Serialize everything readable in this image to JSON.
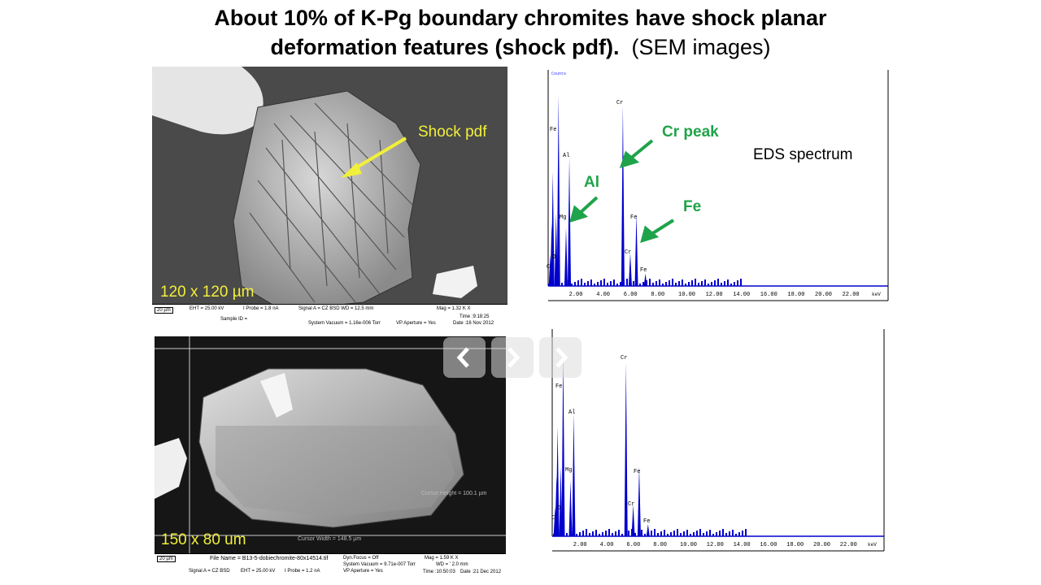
{
  "title": {
    "line1": "About 10% of K-Pg boundary chromites have shock planar",
    "line2_bold": "deformation features (shock pdf).",
    "line2_normal": "(SEM images)"
  },
  "sem_top": {
    "size_label": "120 x 120 µm",
    "annotation": "Shock pdf",
    "info": {
      "eht": "EHT = 25.00 kV",
      "iprobe": "I Probe =   1.8 nA",
      "signal": "Signal A = CZ BSD  WD = 12.5 mm",
      "mag": "Mag =   1.32 K X",
      "time": "Time :9:18:25",
      "sample": "Sample ID =",
      "vacuum": "System Vacuum = 1.16e-006 Torr",
      "aperture": "VP Aperture = Yes",
      "date": "Date :16 Nov 2012",
      "scale": "20 µm"
    }
  },
  "sem_bottom": {
    "size_label": "150 x 80 um",
    "cursor_height": "Cursor Height = 100.1 µm",
    "cursor_width": "Cursor Width = 148.5 µm",
    "info": {
      "filename": "File Name = B13-5-dobiechromite-80x14514.tif",
      "dynfocus": "Dyn.Focus = Off",
      "vacuum": "System Vacuum = 9.71e-007 Torr",
      "aperture": "VP Aperture = Yes",
      "mag": "Mag =   1.59 K X",
      "wd": "WD = ' 2.0 mm",
      "signal": "Signal A = CZ BSD",
      "eht": "EHT = 25.00 kV",
      "iprobe": "I Probe =    1.2 nA",
      "time": "Time :10:50:03",
      "date": "Date :21 Dec 2012",
      "scale": "20 µm"
    }
  },
  "eds_top": {
    "label": "EDS spectrum",
    "annot_cr": "Cr peak",
    "annot_al": "Al",
    "annot_fe": "Fe",
    "counts": "Counts",
    "unit": "keV",
    "ticks": [
      "2.00",
      "4.00",
      "6.00",
      "8.00",
      "10.00",
      "12.00",
      "14.00",
      "16.00",
      "18.00",
      "20.00",
      "22.00"
    ],
    "peaks": [
      "Fe",
      "Al",
      "Mg",
      "Cr",
      "Fe",
      "Cr",
      "Fe",
      "C",
      "O"
    ]
  },
  "eds_bottom": {
    "unit": "keV",
    "ticks": [
      "2.00",
      "4.00",
      "6.00",
      "8.00",
      "10.00",
      "12.00",
      "14.00",
      "16.00",
      "18.00",
      "20.00",
      "22.00"
    ],
    "peaks": [
      "Fe",
      "Al",
      "Mg",
      "Cr",
      "Fe",
      "Cr",
      "Fe",
      "C",
      "O"
    ]
  }
}
